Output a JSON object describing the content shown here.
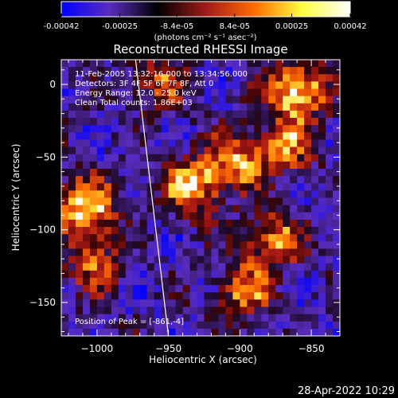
{
  "window": {
    "timestamp": "28-Apr-2022 10:29"
  },
  "colorbar": {
    "ticks": [
      "-0.00042",
      "-0.00025",
      "-8.4e-05",
      "8.4e-05",
      "0.00025",
      "0.00042"
    ],
    "tick_values": [
      -0.00042,
      -0.00025,
      -8.4e-05,
      8.4e-05,
      0.00025,
      0.00042
    ],
    "range": [
      -0.00042,
      0.00042
    ],
    "units_label": "(photons cm⁻² s⁻¹ asec⁻²)",
    "colors": [
      "#0000ff",
      "#5a2dbf",
      "#000000",
      "#a01a1a",
      "#ff6a00",
      "#ffff40",
      "#ffffff"
    ]
  },
  "plot": {
    "title": "Reconstructed RHESSI Image",
    "annotations": {
      "time_range": "11-Feb-2005 13:32:16.000 to 13:34:56.000",
      "detectors": "Detectors: 3F 4F 5F 6F 7F 8F, Att 0",
      "energy_range": "Energy Range: 12.0 - 25.0 keV",
      "clean_counts": "Clean     Total counts: 1.86E+03",
      "peak": "Position of Peak = [-861,-4]"
    }
  },
  "chart_data": {
    "type": "heatmap",
    "title": "Reconstructed RHESSI Image",
    "xlabel": "Heliocentric X (arcsec)",
    "ylabel": "Heliocentric Y (arcsec)",
    "xlim": [
      -1025,
      -830
    ],
    "ylim": [
      -173,
      17
    ],
    "x_ticks": [
      -1000,
      -950,
      -900,
      -850
    ],
    "x_tick_labels": [
      "−1000",
      "−950",
      "−900",
      "−850"
    ],
    "y_ticks": [
      0,
      -50,
      -100,
      -150
    ],
    "y_tick_labels": [
      "0",
      "−50",
      "−100",
      "−150"
    ],
    "colormap": "blue-purple-black-red-orange-yellow-white",
    "value_range": [
      -0.00042,
      0.00042
    ],
    "peak_position": [
      -861,
      -4
    ],
    "hot_regions": [
      {
        "x": -862,
        "y": -2,
        "intensity": 1.0
      },
      {
        "x": -1010,
        "y": -82,
        "intensity": 0.9
      },
      {
        "x": -935,
        "y": -68,
        "intensity": 0.85
      },
      {
        "x": -905,
        "y": -50,
        "intensity": 0.7
      },
      {
        "x": -880,
        "y": -105,
        "intensity": 0.7
      },
      {
        "x": -900,
        "y": -140,
        "intensity": 0.6
      },
      {
        "x": -870,
        "y": -40,
        "intensity": 0.6
      },
      {
        "x": -1005,
        "y": -120,
        "intensity": 0.55
      },
      {
        "x": -960,
        "y": 5,
        "intensity": 0.5
      }
    ],
    "limb_line": {
      "x1": -973,
      "y1": 17,
      "x2": -950,
      "y2": -173
    }
  }
}
